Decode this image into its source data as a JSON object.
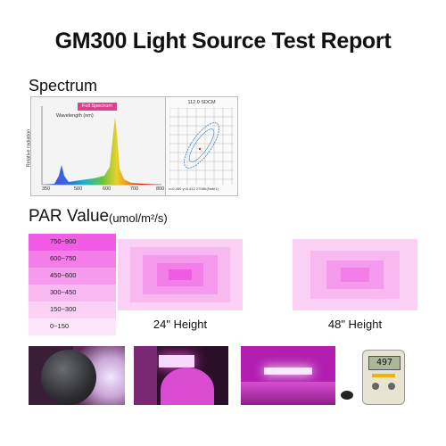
{
  "title": "GM300 Light Source Test Report",
  "spectrum": {
    "heading": "Spectrum",
    "chart_title": "Full Spectrum",
    "xlabel": "Wavelength (nm)",
    "ylabel": "Relative radiation",
    "x_ticks": [
      "350",
      "500",
      "600",
      "700",
      "800"
    ],
    "cie_title": "112.0 SDCM",
    "cie_note": "x=0.450 y=0.412 2708K(Note1)"
  },
  "par": {
    "heading": "PAR Value",
    "unit": "(umol/m²/s)",
    "legend": [
      {
        "label": "750~900",
        "color": "#f05ce4"
      },
      {
        "label": "600~750",
        "color": "#f37ee8"
      },
      {
        "label": "450~600",
        "color": "#f59aec"
      },
      {
        "label": "300~450",
        "color": "#f8b9f1"
      },
      {
        "label": "150~300",
        "color": "#fbd2f6"
      },
      {
        "label": "0~150",
        "color": "#fde6fa"
      }
    ],
    "maps": [
      {
        "caption": "24\" Height"
      },
      {
        "caption": "48\" Height"
      }
    ]
  },
  "photos": {
    "meter_reading": "497"
  }
}
